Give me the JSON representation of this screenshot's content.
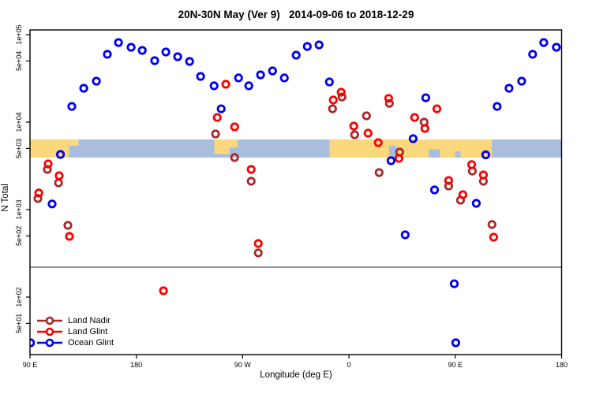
{
  "title": "20N-30N May (Ver 9)   2014-09-06 to 2018-12-29",
  "legend": {
    "items": [
      {
        "label": "Land Nadir",
        "color": "#A52A2A"
      },
      {
        "label": "Land Glint",
        "color": "#FF0000"
      },
      {
        "label": "Ocean Glint",
        "color": "#0000F0"
      }
    ]
  },
  "chart_data": {
    "type": "scatter",
    "title": "20N-30N May (Ver 9)   2014-09-06 to 2018-12-29",
    "xlabel": "Longitude (deg E)",
    "ylabel": "N Total",
    "grid": false,
    "legend_position": "bottom-left",
    "x_axis": {
      "note": "longitude axis spans 450 deg, 90E wrapping east to 180; points between 90E-180 appear twice",
      "range": [
        90,
        540
      ],
      "ticks": [
        {
          "lon": 90,
          "label": "90 E"
        },
        {
          "lon": 180,
          "label": "180"
        },
        {
          "lon": 270,
          "label": "90 W"
        },
        {
          "lon": 360,
          "label": "0"
        },
        {
          "lon": 450,
          "label": "90 E"
        },
        {
          "lon": 540,
          "label": "180"
        }
      ]
    },
    "y_axis": {
      "scale": "log10",
      "range": [
        22,
        113000
      ],
      "ticks": [
        {
          "value": 100000,
          "label": "1e+05"
        },
        {
          "value": 50000,
          "label": "5e+04"
        },
        {
          "value": 10000,
          "label": "1e+04"
        },
        {
          "value": 5000,
          "label": "5e+03"
        },
        {
          "value": 1000,
          "label": "1e+03"
        },
        {
          "value": 500,
          "label": "5e+02"
        },
        {
          "value": 100,
          "label": "1e+02"
        },
        {
          "value": 50,
          "label": "5e+01"
        }
      ]
    },
    "panel_break_n": 220,
    "map_band": {
      "n_range": [
        3930,
        6330
      ],
      "ocean_color": "#A9BEDF",
      "land_color": "#FBD77E",
      "land_segments": [
        {
          "lon": [
            90,
            123
          ],
          "y": [
            0,
            1
          ]
        },
        {
          "lon": [
            123,
            131
          ],
          "y": [
            0,
            0.35
          ]
        },
        {
          "lon": [
            246,
            259
          ],
          "y": [
            0,
            0.8
          ]
        },
        {
          "lon": [
            259,
            266
          ],
          "y": [
            0,
            0.45
          ]
        },
        {
          "lon": [
            343.5,
            481
          ],
          "y": [
            0,
            1
          ]
        }
      ],
      "ocean_notches": [
        {
          "lon": [
            394,
            400.5
          ],
          "y": [
            0.35,
            1
          ]
        },
        {
          "lon": [
            427.5,
            437
          ],
          "y": [
            0.55,
            1
          ]
        },
        {
          "lon": [
            450,
            454.5
          ],
          "y": [
            0.65,
            1
          ]
        }
      ]
    },
    "series": [
      {
        "name": "Land Nadir",
        "color": "#A52A2A",
        "points": [
          [
            247.1,
            7330
          ],
          [
            263.2,
            3940
          ],
          [
            277.2,
            2110
          ],
          [
            283.2,
            320
          ],
          [
            346.1,
            14200
          ],
          [
            354.1,
            19400
          ],
          [
            364.8,
            7180
          ],
          [
            374.8,
            11800
          ],
          [
            385.5,
            2650
          ],
          [
            394.2,
            16400
          ],
          [
            402.9,
            4550
          ],
          [
            423.6,
            10000
          ],
          [
            444.4,
            1860
          ],
          [
            454.4,
            1280
          ],
          [
            464.4,
            2760
          ],
          [
            473.8,
            2110
          ],
          [
            481.1,
            675
          ],
          [
            104.7,
            2880
          ],
          [
            114.1,
            2020
          ],
          [
            96.7,
            1340
          ],
          [
            122.1,
            660
          ]
        ]
      },
      {
        "name": "Land Glint",
        "color": "#FF0000",
        "points": [
          [
            248.5,
            11300
          ],
          [
            255.8,
            27100
          ],
          [
            263.2,
            8830
          ],
          [
            277.2,
            2880
          ],
          [
            283.2,
            410
          ],
          [
            346.7,
            17900
          ],
          [
            353.4,
            22000
          ],
          [
            364.1,
            9020
          ],
          [
            376.2,
            7480
          ],
          [
            384.8,
            5830
          ],
          [
            393.6,
            18700
          ],
          [
            402.3,
            3850
          ],
          [
            415.6,
            11300
          ],
          [
            424.3,
            8470
          ],
          [
            434.4,
            14200
          ],
          [
            444.4,
            2150
          ],
          [
            456.4,
            1480
          ],
          [
            463.8,
            3270
          ],
          [
            473.8,
            2490
          ],
          [
            482.5,
            484
          ],
          [
            105.4,
            3330
          ],
          [
            114.7,
            2440
          ],
          [
            97.4,
            1550
          ],
          [
            123.4,
            494
          ],
          [
            203.0,
            118
          ]
        ]
      },
      {
        "name": "Ocean Glint",
        "color": "#0000F0",
        "points": [
          [
            125.4,
            15100
          ],
          [
            135.5,
            24400
          ],
          [
            146.2,
            29400
          ],
          [
            155.5,
            59600
          ],
          [
            164.9,
            81300
          ],
          [
            175.6,
            71800
          ],
          [
            185.0,
            66100
          ],
          [
            195.6,
            50400
          ],
          [
            205.0,
            63400
          ],
          [
            215.0,
            56000
          ],
          [
            225.1,
            49400
          ],
          [
            234.4,
            33300
          ],
          [
            245.8,
            26000
          ],
          [
            251.8,
            14200
          ],
          [
            266.5,
            32000
          ],
          [
            275.2,
            26000
          ],
          [
            285.2,
            34700
          ],
          [
            295.3,
            38500
          ],
          [
            305.3,
            32000
          ],
          [
            315.3,
            58300
          ],
          [
            324.7,
            73300
          ],
          [
            334.7,
            76400
          ],
          [
            343.4,
            28800
          ],
          [
            414.3,
            6470
          ],
          [
            425.0,
            19000
          ],
          [
            485.4,
            15100
          ],
          [
            495.5,
            24400
          ],
          [
            506.2,
            29400
          ],
          [
            515.5,
            59600
          ],
          [
            524.9,
            81300
          ],
          [
            535.6,
            71800
          ],
          [
            115.8,
            4270
          ],
          [
            108.7,
            1160
          ],
          [
            395.6,
            3620
          ],
          [
            407.6,
            515
          ],
          [
            432.4,
            1680
          ],
          [
            467.8,
            1180
          ],
          [
            475.8,
            4230
          ],
          [
            449.1,
            142
          ],
          [
            450.4,
            30
          ],
          [
            90.5,
            30
          ]
        ]
      }
    ]
  }
}
